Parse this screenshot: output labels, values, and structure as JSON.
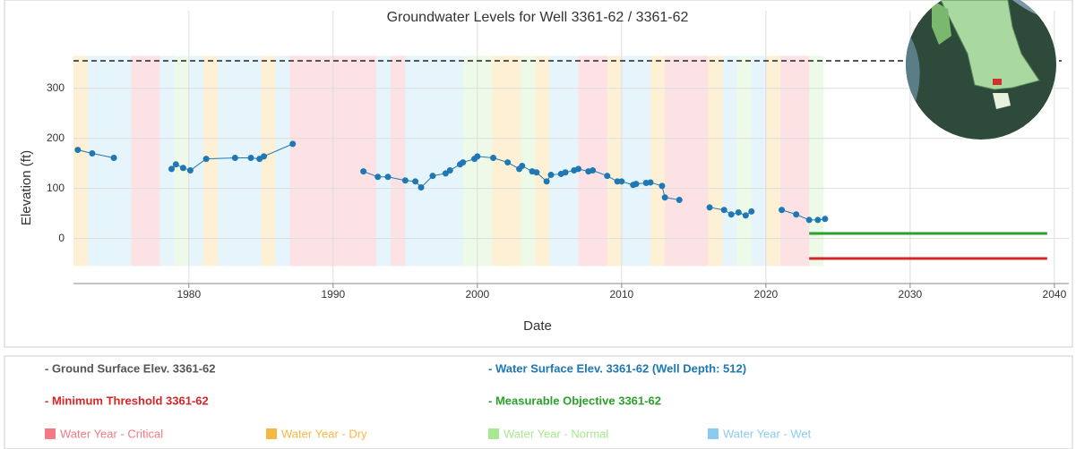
{
  "chart_data": {
    "type": "line",
    "title": "Groundwater Levels for Well 3361-62 / 3361-62",
    "x_label": "Date",
    "y_label": "Elevation (ft)",
    "xlim": [
      1972,
      2041
    ],
    "xticks": [
      1980,
      1990,
      2000,
      2010,
      2020,
      2030,
      2040
    ],
    "ylim": [
      -90,
      455
    ],
    "yticks": [
      0,
      100,
      200,
      300
    ],
    "grid": true,
    "series": [
      {
        "name": "- Ground Surface Elev. 3361-62",
        "color": "#555555",
        "style": "dashed",
        "x": [
          1972,
          2040.5
        ],
        "values": [
          355,
          355
        ]
      },
      {
        "name": "- Water Surface Elev. 3361-62  (Well Depth: 512)",
        "color": "#1f77b4",
        "style": "markers",
        "x": [
          1972.3,
          1973.3,
          1974.8,
          null,
          1978.8,
          1979.1,
          1979.6,
          1980.1,
          1981.2,
          1983.2,
          1984.3,
          1984.9,
          1985.2,
          1987.2,
          null,
          1992.1,
          1993.1,
          1993.8,
          1995.0,
          1995.7,
          1996.1,
          1996.9,
          1997.8,
          1998.1,
          1998.8,
          1999.0,
          1999.8,
          2000.0,
          2001.1,
          2002.1,
          2002.9,
          2003.1,
          2003.8,
          2004.1,
          2004.8,
          2005.1,
          2005.8,
          2006.1,
          2006.7,
          2007.0,
          2007.7,
          2008.0,
          2009.0,
          2009.7,
          2010.0,
          2010.8,
          2011.0,
          2011.7,
          2012.0,
          2012.8,
          2013.0,
          2014.0,
          null,
          2016.1,
          2017.1,
          2017.6,
          2018.1,
          2018.6,
          2019.0,
          null,
          2021.1,
          2022.1,
          2023.0,
          2023.6,
          2024.1
        ],
        "values": [
          177,
          170,
          161,
          null,
          139,
          148,
          141,
          136,
          159,
          161,
          161,
          159,
          164,
          189,
          null,
          134,
          123,
          123,
          116,
          114,
          102,
          125,
          130,
          136,
          148,
          152,
          159,
          164,
          161,
          152,
          139,
          145,
          134,
          132,
          114,
          127,
          129,
          132,
          136,
          139,
          134,
          136,
          125,
          114,
          114,
          107,
          109,
          111,
          112,
          105,
          82,
          77,
          null,
          62,
          57,
          48,
          52,
          46,
          54,
          null,
          57,
          48,
          37,
          37,
          39
        ]
      },
      {
        "name": "- Minimum Threshold 3361-62",
        "color": "#d62728",
        "style": "solid",
        "x": [
          2023,
          2039.5
        ],
        "values": [
          -40,
          -40
        ]
      },
      {
        "name": "- Measurable Objective 3361-62",
        "color": "#2ca02c",
        "style": "solid",
        "x": [
          2023,
          2039.5
        ],
        "values": [
          10,
          10
        ]
      }
    ],
    "water_years": {
      "legend": [
        {
          "name": "Water Year - Critical",
          "color": "#f07a85"
        },
        {
          "name": "Water Year - Dry",
          "color": "#f5b942"
        },
        {
          "name": "Water Year - Normal",
          "color": "#a8e890"
        },
        {
          "name": "Water Year - Wet",
          "color": "#8ccbf0"
        }
      ],
      "band_range": [
        -55,
        365
      ],
      "years": [
        1972,
        1973,
        1974,
        1975,
        1976,
        1977,
        1978,
        1979,
        1980,
        1981,
        1982,
        1983,
        1984,
        1985,
        1986,
        1987,
        1988,
        1989,
        1990,
        1991,
        1992,
        1993,
        1994,
        1995,
        1996,
        1997,
        1998,
        1999,
        2000,
        2001,
        2002,
        2003,
        2004,
        2005,
        2006,
        2007,
        2008,
        2009,
        2010,
        2011,
        2012,
        2013,
        2014,
        2015,
        2016,
        2017,
        2018,
        2019,
        2020,
        2021,
        2022,
        2023
      ],
      "types": [
        1,
        3,
        3,
        3,
        0,
        0,
        3,
        2,
        3,
        1,
        3,
        3,
        3,
        1,
        3,
        0,
        0,
        0,
        0,
        0,
        0,
        3,
        0,
        3,
        3,
        3,
        3,
        2,
        2,
        1,
        1,
        2,
        1,
        3,
        3,
        0,
        0,
        1,
        3,
        3,
        1,
        0,
        0,
        0,
        1,
        3,
        2,
        3,
        1,
        0,
        0,
        2
      ]
    }
  }
}
